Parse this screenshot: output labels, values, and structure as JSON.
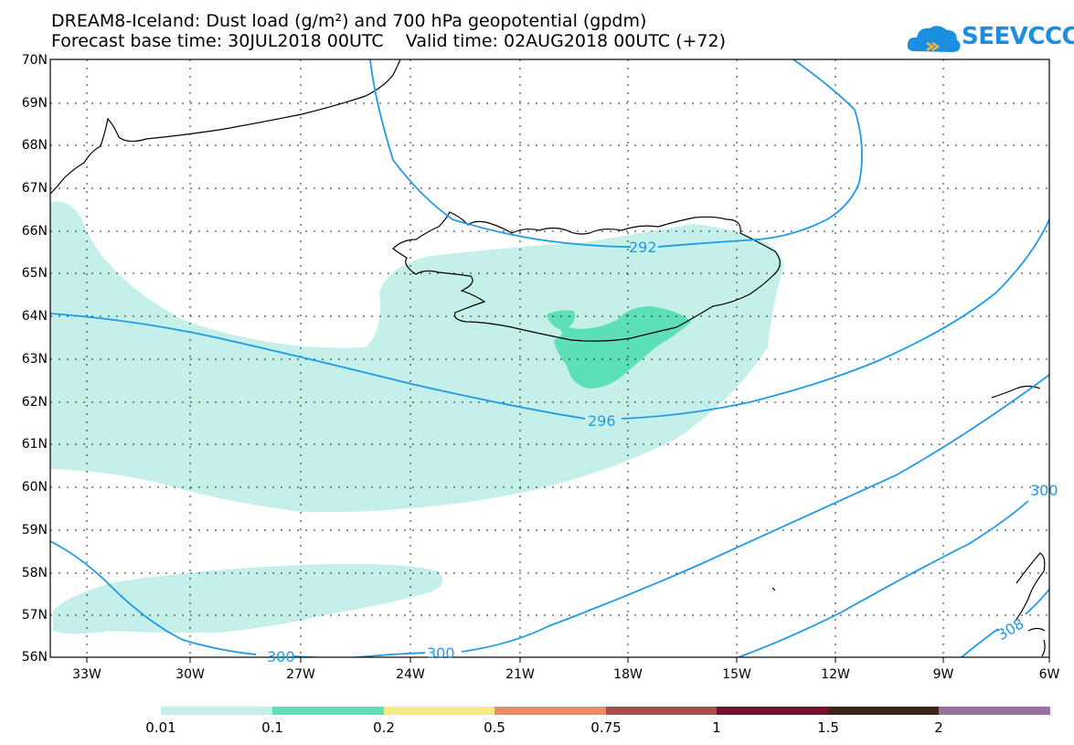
{
  "title": {
    "line1": "DREAM8-Iceland: Dust load (g/m²) and 700 hPa geopotential (gpdm)",
    "line2": "Forecast base time: 30JUL2018 00UTC    Valid time: 02AUG2018 00UTC (+72)"
  },
  "logo": {
    "text": "SEEVCCC",
    "icon": "cloud-icon",
    "color": "#1a8fe0"
  },
  "map": {
    "lat_labels": [
      "70N",
      "69N",
      "68N",
      "67N",
      "66N",
      "65N",
      "64N",
      "63N",
      "62N",
      "61N",
      "60N",
      "59N",
      "58N",
      "57N",
      "56N"
    ],
    "lon_labels": [
      "33W",
      "30W",
      "27W",
      "24W",
      "21W",
      "18W",
      "15W",
      "12W",
      "9W",
      "6W"
    ],
    "contour_labels": [
      "292",
      "296",
      "300",
      "300",
      "300",
      "308"
    ],
    "contour_color": "#1e9be8",
    "coast_color": "#000000"
  },
  "legend": {
    "labels": [
      "0.01",
      "0.1",
      "0.2",
      "0.5",
      "0.75",
      "1",
      "1.5",
      "2"
    ],
    "colors": [
      "#c5f0ea",
      "#5ddfb8",
      "#f6e98a",
      "#e88c6a",
      "#a4504a",
      "#7a0f2e",
      "#3b2418",
      "#9b6fa2"
    ]
  }
}
